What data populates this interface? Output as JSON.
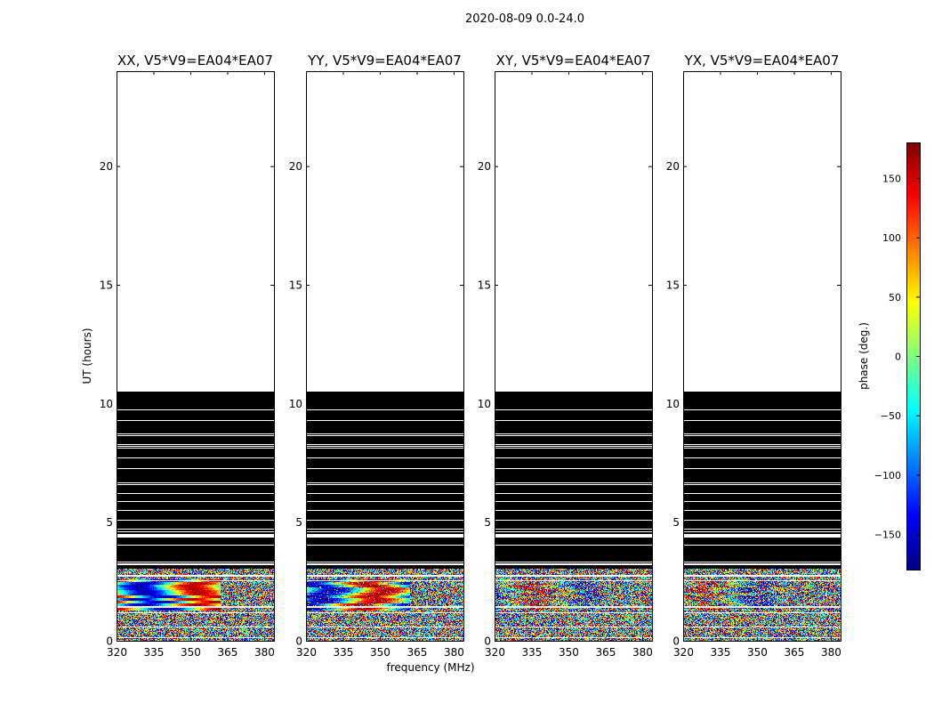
{
  "figure": {
    "suptitle": "2020-08-09 0.0-24.0",
    "xlabel": "frequency (MHz)",
    "ylabel": "UT (hours)"
  },
  "chart_data": {
    "type": "heatmap",
    "panels": [
      {
        "title": "XX, V5*V9=EA04*EA07",
        "fringe_strength": 1.0
      },
      {
        "title": "YY, V5*V9=EA04*EA07",
        "fringe_strength": 0.9
      },
      {
        "title": "XY, V5*V9=EA04*EA07",
        "fringe_strength": 0.35
      },
      {
        "title": "YX, V5*V9=EA04*EA07",
        "fringe_strength": 0.35
      }
    ],
    "xlim": [
      320,
      384
    ],
    "ylim": [
      0,
      24
    ],
    "xticks": [
      "320",
      "335",
      "350",
      "365",
      "380"
    ],
    "xtick_values": [
      320,
      335,
      350,
      365,
      380
    ],
    "yticks": [
      "0",
      "5",
      "10",
      "15",
      "20"
    ],
    "ytick_values": [
      0,
      5,
      10,
      15,
      20
    ],
    "data_hours": [
      0,
      3.05
    ],
    "flagged_hours": [
      3.05,
      10.5
    ],
    "colorbar": {
      "label": "phase (deg.)",
      "range": [
        -180,
        180
      ],
      "ticks": [
        "150",
        "100",
        "50",
        "0",
        "−50",
        "−100",
        "−150"
      ],
      "tick_values": [
        150,
        100,
        50,
        0,
        -50,
        -100,
        -150
      ],
      "colormap": "jet"
    }
  }
}
